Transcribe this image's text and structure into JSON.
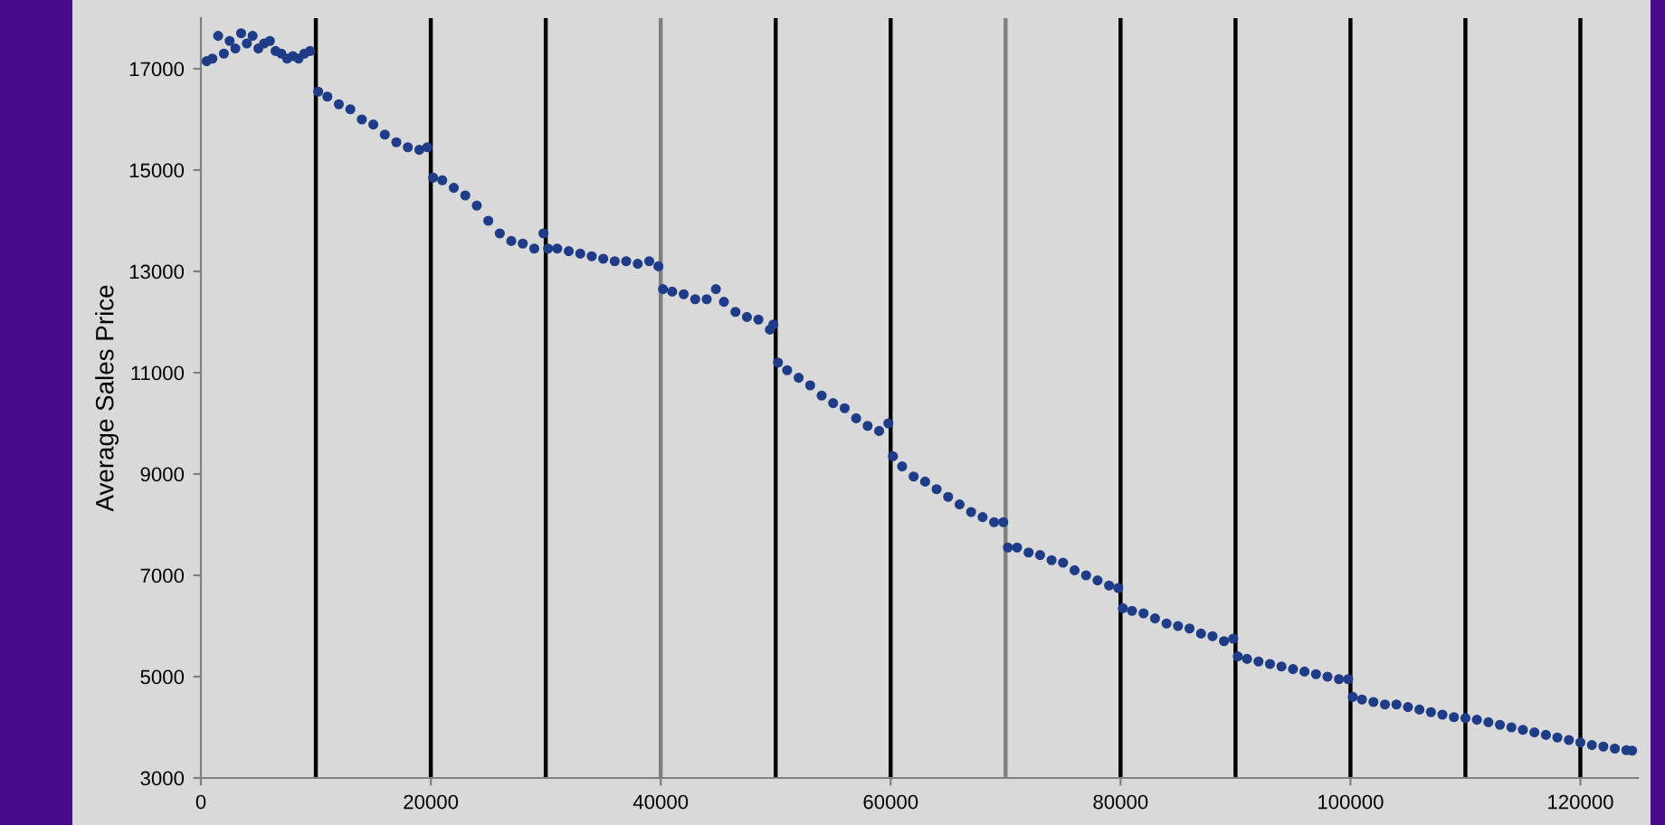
{
  "chart_data": {
    "type": "scatter",
    "ylabel": "Average Sales Price",
    "marker": "circle",
    "grid": false,
    "legend": false,
    "xlim": [
      0,
      125000
    ],
    "xticks": [
      0,
      20000,
      40000,
      60000,
      80000,
      100000,
      120000
    ],
    "ylim": [
      3000,
      18000
    ],
    "yticks": [
      3000,
      5000,
      7000,
      9000,
      11000,
      13000,
      15000,
      17000
    ],
    "series": [
      {
        "color": "#1f3c88",
        "x": [
          500,
          1000,
          1500,
          2000,
          2500,
          3000,
          3500,
          4000,
          4500,
          5000,
          5500,
          6000,
          6500,
          7000,
          7500,
          8000,
          8500,
          9000,
          9500,
          10200,
          11000,
          12000,
          13000,
          14000,
          15000,
          16000,
          17000,
          18000,
          19000,
          19700,
          20200,
          21000,
          22000,
          23000,
          24000,
          25000,
          26000,
          27000,
          28000,
          29000,
          29800,
          30200,
          31000,
          32000,
          33000,
          34000,
          35000,
          36000,
          37000,
          38000,
          39000,
          39800,
          40200,
          41000,
          42000,
          43000,
          44000,
          44800,
          45500,
          46500,
          47500,
          48500,
          49500,
          49800,
          50200,
          51000,
          52000,
          53000,
          54000,
          55000,
          56000,
          57000,
          58000,
          59000,
          59800,
          60200,
          61000,
          62000,
          63000,
          64000,
          65000,
          66000,
          67000,
          68000,
          69000,
          69800,
          70200,
          71000,
          72000,
          73000,
          74000,
          75000,
          76000,
          77000,
          78000,
          79000,
          79800,
          80200,
          81000,
          82000,
          83000,
          84000,
          85000,
          86000,
          87000,
          88000,
          89000,
          89800,
          90200,
          91000,
          92000,
          93000,
          94000,
          95000,
          96000,
          97000,
          98000,
          99000,
          99800,
          100200,
          101000,
          102000,
          103000,
          104000,
          105000,
          106000,
          107000,
          108000,
          109000,
          110000,
          111000,
          112000,
          113000,
          114000,
          115000,
          116000,
          117000,
          118000,
          119000,
          120000,
          121000,
          122000,
          123000,
          124000,
          124500
        ],
        "values": [
          17150,
          17200,
          17650,
          17300,
          17550,
          17400,
          17700,
          17500,
          17650,
          17400,
          17500,
          17550,
          17350,
          17300,
          17200,
          17250,
          17200,
          17300,
          17350,
          16550,
          16450,
          16300,
          16200,
          16000,
          15900,
          15700,
          15550,
          15450,
          15400,
          15450,
          14850,
          14800,
          14650,
          14500,
          14300,
          14000,
          13750,
          13600,
          13550,
          13450,
          13750,
          13450,
          13450,
          13400,
          13350,
          13300,
          13250,
          13200,
          13200,
          13150,
          13200,
          13100,
          12650,
          12600,
          12550,
          12450,
          12450,
          12650,
          12400,
          12200,
          12100,
          12050,
          11850,
          11950,
          11200,
          11050,
          10900,
          10750,
          10550,
          10400,
          10300,
          10100,
          9950,
          9850,
          10000,
          9350,
          9150,
          8950,
          8850,
          8700,
          8550,
          8400,
          8250,
          8150,
          8050,
          8050,
          7550,
          7550,
          7450,
          7400,
          7300,
          7250,
          7100,
          7000,
          6900,
          6800,
          6750,
          6350,
          6300,
          6250,
          6150,
          6050,
          6000,
          5950,
          5850,
          5800,
          5700,
          5750,
          5400,
          5350,
          5300,
          5250,
          5200,
          5150,
          5100,
          5050,
          5000,
          4950,
          4950,
          4600,
          4550,
          4500,
          4450,
          4450,
          4400,
          4350,
          4300,
          4250,
          4200,
          4180,
          4150,
          4100,
          4050,
          4000,
          3950,
          3900,
          3850,
          3800,
          3750,
          3700,
          3650,
          3620,
          3580,
          3550,
          3540
        ]
      }
    ],
    "ref_lines": [
      {
        "axis": "x",
        "value": 10000,
        "color": "#000000"
      },
      {
        "axis": "x",
        "value": 20000,
        "color": "#000000"
      },
      {
        "axis": "x",
        "value": 30000,
        "color": "#000000"
      },
      {
        "axis": "x",
        "value": 40000,
        "color": "#808080"
      },
      {
        "axis": "x",
        "value": 50000,
        "color": "#000000"
      },
      {
        "axis": "x",
        "value": 60000,
        "color": "#000000"
      },
      {
        "axis": "x",
        "value": 70000,
        "color": "#808080"
      },
      {
        "axis": "x",
        "value": 80000,
        "color": "#000000"
      },
      {
        "axis": "x",
        "value": 90000,
        "color": "#000000"
      },
      {
        "axis": "x",
        "value": 100000,
        "color": "#000000"
      },
      {
        "axis": "x",
        "value": 110000,
        "color": "#000000"
      },
      {
        "axis": "x",
        "value": 120000,
        "color": "#000000"
      }
    ]
  }
}
